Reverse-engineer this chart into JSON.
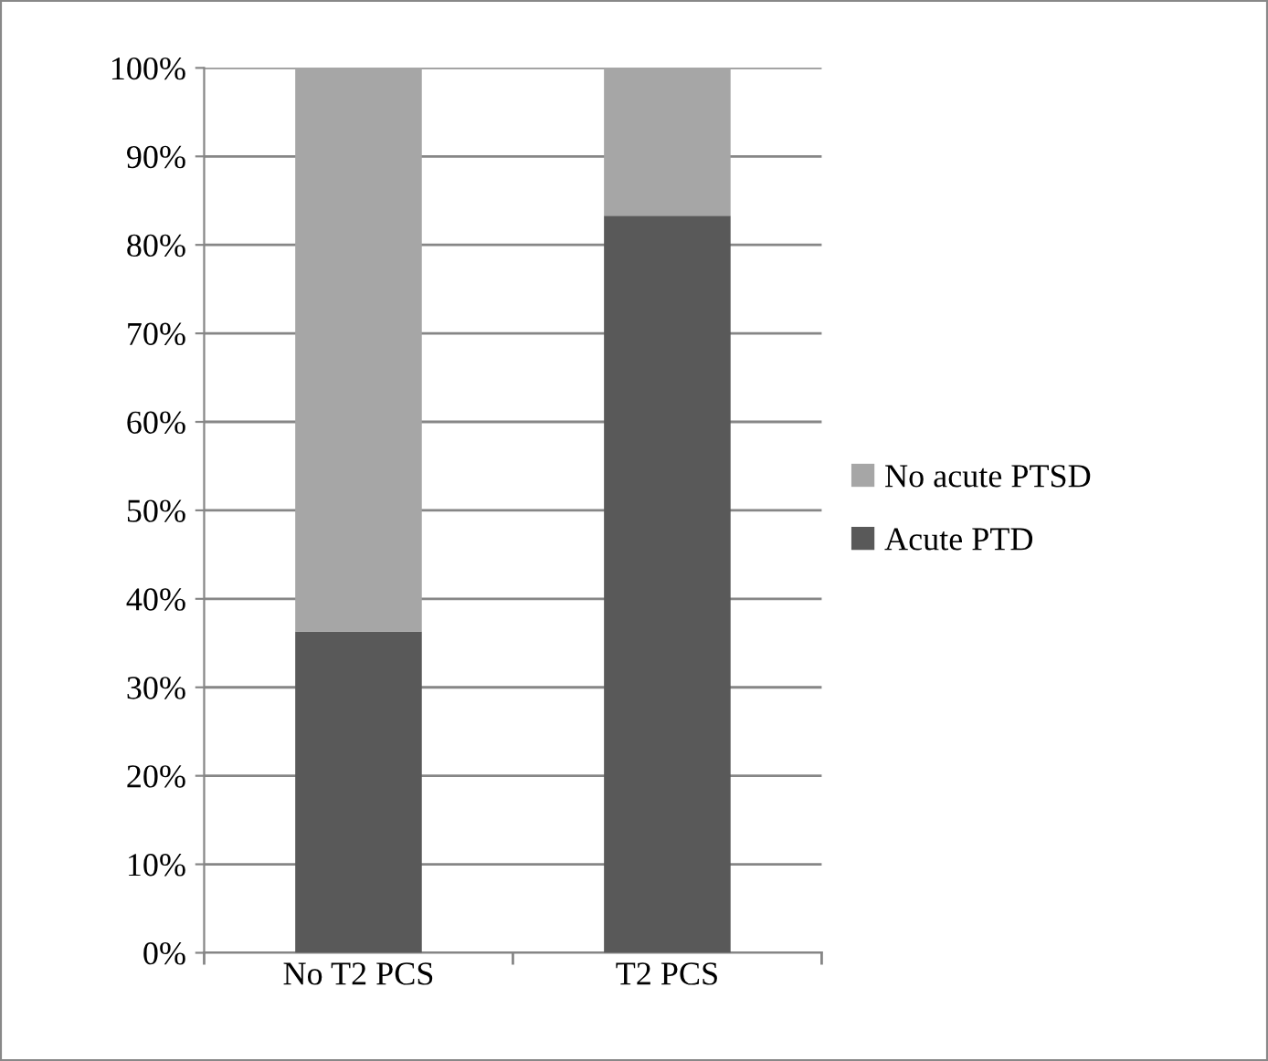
{
  "chart_data": {
    "type": "bar",
    "stacked": true,
    "categories": [
      "No T2 PCS",
      "T2 PCS"
    ],
    "series": [
      {
        "name": "Acute PTD",
        "color": "#595959",
        "values": [
          36.3,
          83.3
        ]
      },
      {
        "name": "No acute PTSD",
        "color": "#a6a6a6",
        "values": [
          63.7,
          16.7
        ]
      }
    ],
    "ylim": [
      0,
      100
    ],
    "yticks": [
      {
        "value": 0,
        "label": "0%"
      },
      {
        "value": 10,
        "label": "10%"
      },
      {
        "value": 20,
        "label": "20%"
      },
      {
        "value": 30,
        "label": "30%"
      },
      {
        "value": 40,
        "label": "40%"
      },
      {
        "value": 50,
        "label": "50%"
      },
      {
        "value": 60,
        "label": "60%"
      },
      {
        "value": 70,
        "label": "70%"
      },
      {
        "value": 80,
        "label": "80%"
      },
      {
        "value": 90,
        "label": "90%"
      },
      {
        "value": 100,
        "label": "100%"
      }
    ],
    "grid": "y",
    "legend": "right"
  }
}
